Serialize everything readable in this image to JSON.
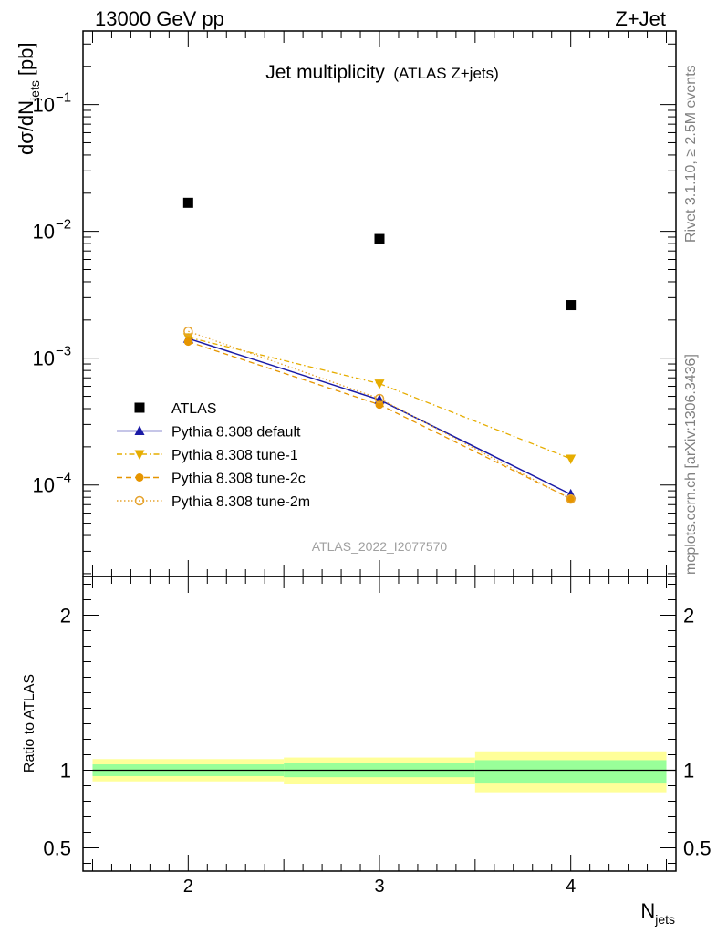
{
  "header": {
    "left": "13000 GeV pp",
    "right": "Z+Jet"
  },
  "side_labels": {
    "rivet": "Rivet 3.1.10, ≥ 2.5M events",
    "mcplots": "mcplots.cern.ch [arXiv:1306.3436]"
  },
  "colors": {
    "data": "#000000",
    "default": "#1a1aa6",
    "tune1": "#e6ad00",
    "tune2c": "#e69500",
    "tune2m": "#e6a32e",
    "band_inner": "#99ff99",
    "band_outer": "#ffff99",
    "watermark": "#a0a0a0"
  },
  "chart_data": [
    {
      "type": "scatter",
      "title": "Jet multiplicity",
      "subtitle": "(ATLAS Z+jets)",
      "ylabel": "dσ/dN_jets [pb]",
      "ylabel_main": "dσ/dN",
      "ylabel_sub": "jets",
      "ylabel_unit": "[pb]",
      "yscale": "log",
      "xlim": [
        1.45,
        4.55
      ],
      "ylim": [
        1.9e-05,
        0.38
      ],
      "yticks": [
        {
          "value": 0.1,
          "base": "10",
          "exp": "−1"
        },
        {
          "value": 0.01,
          "base": "10",
          "exp": "−2"
        },
        {
          "value": 0.001,
          "base": "10",
          "exp": "−3"
        },
        {
          "value": 0.0001,
          "base": "10",
          "exp": "−4"
        }
      ],
      "watermark": "ATLAS_2022_I2077570",
      "legend_position": "lower-left",
      "series": [
        {
          "name": "ATLAS",
          "key": "data",
          "marker": "square",
          "x": [
            2,
            3,
            4
          ],
          "y": [
            0.0168,
            0.0087,
            0.00262
          ]
        },
        {
          "name": "Pythia 8.308 default",
          "key": "default",
          "marker": "triangle-up",
          "dash": "",
          "x": [
            2,
            3,
            4
          ],
          "y": [
            0.00143,
            0.00047,
            8.45e-05
          ]
        },
        {
          "name": "Pythia 8.308 tune-1",
          "key": "tune1",
          "marker": "triangle-down",
          "dash": "6,3,1.5,3",
          "x": [
            2,
            3,
            4
          ],
          "y": [
            0.00146,
            0.00063,
            0.000161
          ]
        },
        {
          "name": "Pythia 8.308 tune-2c",
          "key": "tune2c",
          "marker": "circle",
          "dash": "6,4",
          "x": [
            2,
            3,
            4
          ],
          "y": [
            0.00135,
            0.00043,
            7.8e-05
          ]
        },
        {
          "name": "Pythia 8.308 tune-2m",
          "key": "tune2m",
          "marker": "circle-open",
          "dash": "1.5,2.5",
          "x": [
            2,
            3,
            4
          ],
          "y": [
            0.00163,
            0.00048,
            7.75e-05
          ]
        }
      ]
    },
    {
      "type": "area",
      "ylabel": "Ratio to ATLAS",
      "xlabel": "N_jets",
      "xlabel_main": "N",
      "xlabel_sub": "jets",
      "xlim": [
        1.45,
        4.55
      ],
      "ylim": [
        0.35,
        2.25
      ],
      "yticks": [
        {
          "value": 2,
          "label": "2"
        },
        {
          "value": 1,
          "label": "1"
        },
        {
          "value": 0.5,
          "label": "0.5"
        }
      ],
      "xticks": [
        {
          "value": 2,
          "label": "2"
        },
        {
          "value": 3,
          "label": "3"
        },
        {
          "value": 4,
          "label": "4"
        }
      ],
      "bins": [
        {
          "low": 1.5,
          "high": 2.5,
          "inner": [
            0.962,
            1.038
          ],
          "outer": [
            0.928,
            1.072
          ]
        },
        {
          "low": 2.5,
          "high": 3.5,
          "inner": [
            0.955,
            1.045
          ],
          "outer": [
            0.913,
            1.082
          ]
        },
        {
          "low": 3.5,
          "high": 4.5,
          "inner": [
            0.92,
            1.065
          ],
          "outer": [
            0.858,
            1.122
          ]
        }
      ],
      "reference": 1
    }
  ]
}
